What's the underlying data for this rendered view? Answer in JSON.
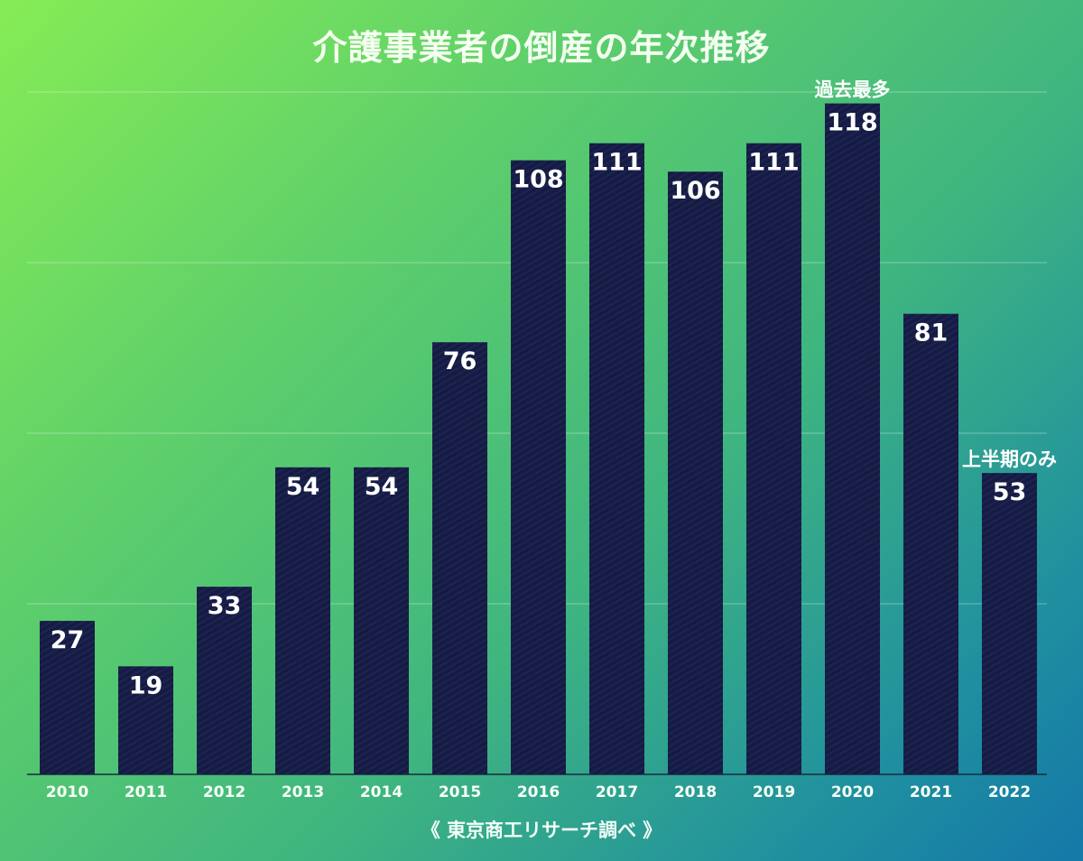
{
  "chart_data": {
    "type": "bar",
    "title": "介護事業者の倒産の年次推移",
    "categories": [
      "2010",
      "2011",
      "2012",
      "2013",
      "2014",
      "2015",
      "2016",
      "2017",
      "2018",
      "2019",
      "2020",
      "2021",
      "2022"
    ],
    "values": [
      27,
      19,
      33,
      54,
      54,
      76,
      108,
      111,
      106,
      111,
      118,
      81,
      53
    ],
    "ylim": [
      0,
      120
    ],
    "gridlines": [
      30,
      60,
      90,
      120
    ],
    "grid": true,
    "annotations": [
      {
        "category": "2020",
        "text": "過去最多"
      },
      {
        "category": "2022",
        "text": "上半期のみ"
      }
    ],
    "source": "《 東京商工リサーチ調べ 》",
    "colors": {
      "bar": "#151b42",
      "background_start": "#86ec55",
      "background_end": "#1578a8"
    }
  }
}
